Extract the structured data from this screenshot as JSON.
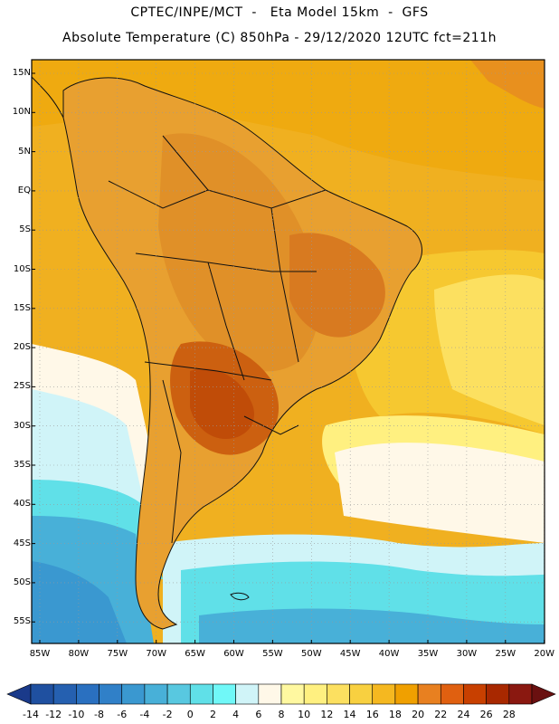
{
  "header": {
    "line1": "CPTEC/INPE/MCT  -   Eta Model 15km  -  GFS",
    "line2": "Absolute Temperature (C) 850hPa - 29/12/2020 12UTC fct=211h"
  },
  "map": {
    "lat_labels": [
      "15N",
      "10N",
      "5N",
      "EQ",
      "5S",
      "10S",
      "15S",
      "20S",
      "25S",
      "30S",
      "35S",
      "40S",
      "45S",
      "50S",
      "55S"
    ],
    "lon_labels": [
      "85W",
      "80W",
      "75W",
      "70W",
      "65W",
      "60W",
      "55W",
      "50W",
      "45W",
      "40W",
      "35W",
      "30W",
      "25W",
      "20W"
    ],
    "land_color": "#e8a030",
    "ocean_warm": "#f0b020",
    "ocean_cold": "#40c8d8"
  },
  "colorbar": {
    "labels": [
      "-14",
      "-12",
      "-10",
      "-8",
      "-6",
      "-4",
      "-2",
      "0",
      "2",
      "4",
      "6",
      "8",
      "10",
      "12",
      "14",
      "16",
      "18",
      "20",
      "22",
      "24",
      "26",
      "28"
    ],
    "colors": [
      "#1a3a8a",
      "#1f50a0",
      "#2560b0",
      "#2a70c0",
      "#3080c8",
      "#3a98d0",
      "#48b0d8",
      "#58c8e0",
      "#60e0e8",
      "#70f8f8",
      "#d0f4f8",
      "#fff8e8",
      "#fff8a0",
      "#fff080",
      "#fce060",
      "#f8d040",
      "#f5b820",
      "#f0a000",
      "#e88020",
      "#e06010",
      "#c84000",
      "#a82800",
      "#8a1810",
      "#6a1010"
    ]
  }
}
